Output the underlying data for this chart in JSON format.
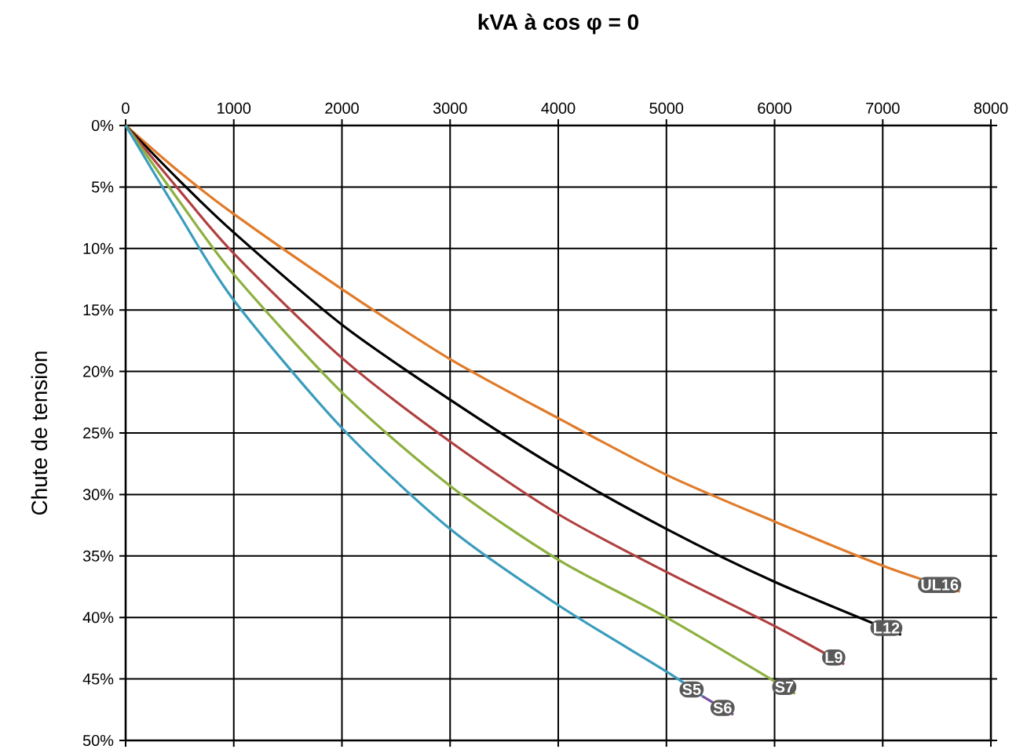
{
  "chart_data": {
    "type": "line",
    "title": "kVA à cos φ = 0",
    "ylabel": "Chute de tension",
    "xlim": [
      0,
      8000
    ],
    "xticks": [
      0,
      1000,
      2000,
      3000,
      4000,
      5000,
      6000,
      7000,
      8000
    ],
    "ylim": [
      50,
      0
    ],
    "yticks": [
      {
        "value": 0,
        "label": "0%"
      },
      {
        "value": 5,
        "label": "5%"
      },
      {
        "value": 10,
        "label": "10%"
      },
      {
        "value": 15,
        "label": "15%"
      },
      {
        "value": 20,
        "label": "20%"
      },
      {
        "value": 25,
        "label": "25%"
      },
      {
        "value": 30,
        "label": "30%"
      },
      {
        "value": 35,
        "label": "35%"
      },
      {
        "value": 40,
        "label": "40%"
      },
      {
        "value": 45,
        "label": "45%"
      },
      {
        "value": 50,
        "label": "50%"
      }
    ],
    "grid": true,
    "legend": false,
    "marker": "none",
    "line_style": "solid",
    "series": [
      {
        "name": "UL16",
        "color": "#e07b2a",
        "x": [
          0,
          500,
          1000,
          2000,
          3000,
          4000,
          5000,
          6000,
          7000,
          7714
        ],
        "values": [
          0,
          3.8,
          7.2,
          13.3,
          19,
          23.8,
          28.4,
          32.2,
          35.8,
          37.9
        ]
      },
      {
        "name": "L12",
        "color": "#000000",
        "x": [
          0,
          500,
          1000,
          2000,
          3000,
          4000,
          5000,
          6000,
          7170
        ],
        "values": [
          0,
          4.5,
          8.7,
          16.2,
          22.3,
          27.9,
          32.8,
          37.1,
          41.4
        ]
      },
      {
        "name": "L9",
        "color": "#b04040",
        "x": [
          0,
          500,
          1000,
          2000,
          3000,
          4000,
          5000,
          6000,
          6643
        ],
        "values": [
          0,
          5.3,
          10.4,
          18.9,
          25.7,
          31.6,
          36.3,
          40.7,
          43.8
        ]
      },
      {
        "name": "S7",
        "color": "#8db040",
        "x": [
          0,
          500,
          1000,
          2000,
          3000,
          4000,
          5000,
          6190
        ],
        "values": [
          0,
          6.2,
          12.1,
          21.7,
          29.3,
          35.3,
          40.0,
          46.2
        ]
      },
      {
        "name": "S6",
        "color": "#7b4fa0",
        "x": [
          5333,
          5619
        ],
        "values": [
          46.4,
          47.9
        ]
      },
      {
        "name": "S5",
        "color": "#3a9cbc",
        "x": [
          0,
          500,
          1000,
          2000,
          3000,
          4000,
          5000,
          5333
        ],
        "values": [
          0,
          7.3,
          14.2,
          24.6,
          32.8,
          39.0,
          44.4,
          46.4
        ]
      }
    ]
  }
}
